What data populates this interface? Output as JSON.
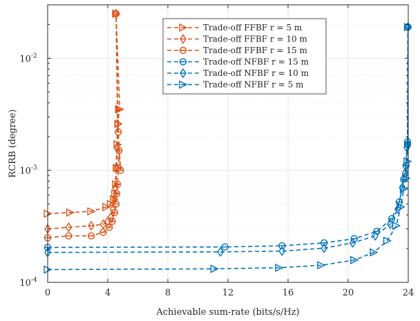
{
  "colors": {
    "ffbf": "#D95319",
    "nfbf": "#0072BD",
    "grid": "#e6e6e6",
    "axis": "#262626"
  },
  "chart_data": {
    "type": "line",
    "xlabel": "Achievable sum-rate (bits/s/Hz)",
    "ylabel": "RCRB (degree)",
    "xlim": [
      0,
      24
    ],
    "ylim": [
      0.0001,
      0.03
    ],
    "yscale": "log",
    "grid": true,
    "legend_position": "top-center",
    "x_ticks": [
      {
        "value": 0,
        "label": "0"
      },
      {
        "value": 4,
        "label": "4"
      },
      {
        "value": 8,
        "label": "8"
      },
      {
        "value": 12,
        "label": "12"
      },
      {
        "value": 16,
        "label": "16"
      },
      {
        "value": 20,
        "label": "20"
      },
      {
        "value": 24,
        "label": "24"
      }
    ],
    "y_ticks": [
      {
        "value": 0.0001,
        "base": "10",
        "exp": "-4"
      },
      {
        "value": 0.001,
        "base": "10",
        "exp": "-3"
      },
      {
        "value": 0.01,
        "base": "10",
        "exp": "-2"
      }
    ],
    "series": [
      {
        "name": "Trade-off FFBF r = 5 m",
        "group": "ffbf",
        "marker": "triangle-right",
        "x": [
          0,
          1.5,
          2.9,
          3.9,
          4.2,
          4.4,
          4.5,
          4.55,
          4.6,
          4.65,
          4.7,
          4.75,
          4.8,
          4.55
        ],
        "y": [
          0.00041,
          0.00042,
          0.00043,
          0.00047,
          0.0005,
          0.00055,
          0.00062,
          0.00075,
          0.00105,
          0.0017,
          0.0026,
          0.0035,
          0.0035,
          0.025
        ]
      },
      {
        "name": "Trade-off FFBF r = 10 m",
        "group": "ffbf",
        "marker": "diamond",
        "x": [
          0,
          1.4,
          2.9,
          3.7,
          4.0,
          4.2,
          4.35,
          4.45,
          4.5,
          4.55,
          4.6,
          4.65,
          4.55
        ],
        "y": [
          0.0003,
          0.00031,
          0.00032,
          0.00033,
          0.00035,
          0.00038,
          0.00045,
          0.00055,
          0.0007,
          0.00105,
          0.0016,
          0.0026,
          0.025
        ]
      },
      {
        "name": "Trade-off FFBF r = 15 m",
        "group": "ffbf",
        "marker": "circle-bar",
        "x": [
          0,
          1.4,
          2.9,
          3.7,
          4.1,
          4.3,
          4.45,
          4.55,
          4.6,
          4.65,
          4.7,
          4.75,
          4.85,
          4.7,
          4.55
        ],
        "y": [
          0.00025,
          0.00026,
          0.00026,
          0.00028,
          0.00031,
          0.00035,
          0.00042,
          0.0005,
          0.00062,
          0.00075,
          0.00105,
          0.0015,
          0.001,
          0.0022,
          0.025
        ]
      },
      {
        "name": "Trade-off NFBF r = 15 m",
        "group": "nfbf",
        "marker": "circle-bar",
        "x": [
          0,
          11.8,
          15.6,
          18.4,
          20.4,
          21.9,
          22.9,
          23.4,
          23.7,
          23.85,
          23.95,
          23.95,
          23.98
        ],
        "y": [
          0.000205,
          0.000207,
          0.000212,
          0.000225,
          0.000245,
          0.000285,
          0.00037,
          0.00052,
          0.00083,
          0.0011,
          0.0018,
          0.0017,
          0.019
        ]
      },
      {
        "name": "Trade-off NFBF r = 10 m",
        "group": "nfbf",
        "marker": "diamond",
        "x": [
          0,
          11.5,
          15.6,
          18.4,
          20.3,
          21.8,
          22.8,
          23.3,
          23.6,
          23.8,
          23.9,
          23.95,
          23.98
        ],
        "y": [
          0.000185,
          0.000187,
          0.00019,
          0.000202,
          0.000225,
          0.00026,
          0.00033,
          0.00045,
          0.0007,
          0.00095,
          0.0016,
          0.0017,
          0.019
        ]
      },
      {
        "name": "Trade-off NFBF r = 5 m",
        "group": "nfbf",
        "marker": "triangle-right",
        "x": [
          0,
          11.1,
          15.4,
          18.2,
          20.4,
          21.7,
          22.6,
          23.2,
          23.5,
          23.7,
          23.85,
          23.95,
          23.98
        ],
        "y": [
          0.00013,
          0.000132,
          0.000135,
          0.000142,
          0.000158,
          0.000185,
          0.000235,
          0.00032,
          0.00047,
          0.00068,
          0.00085,
          0.0012,
          0.019
        ]
      }
    ]
  }
}
